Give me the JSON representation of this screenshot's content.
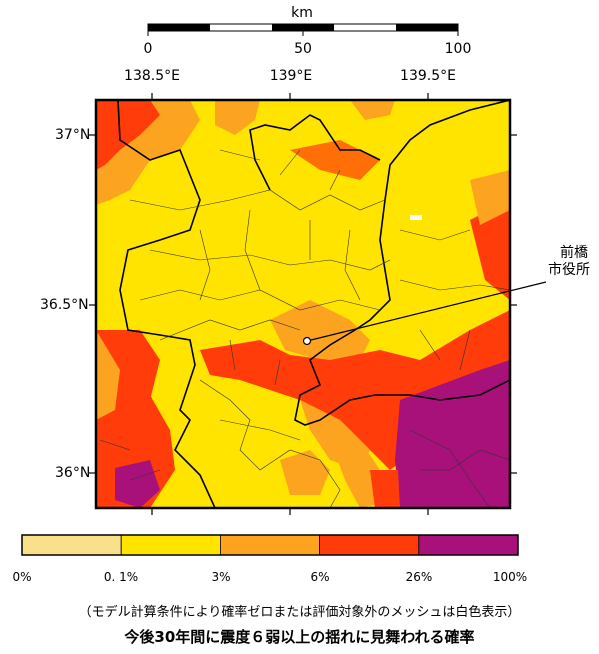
{
  "scale_bar": {
    "unit": "km",
    "ticks": [
      "0",
      "50",
      "100"
    ]
  },
  "lon_ticks": [
    "138.5°E",
    "139°E",
    "139.5°E"
  ],
  "lat_ticks": [
    "37°N",
    "36.5°N",
    "36°N"
  ],
  "marker": {
    "label_line1": "前橋",
    "label_line2": "市役所"
  },
  "legend": {
    "colors": [
      "#f9e08a",
      "#ffe400",
      "#fca420",
      "#ff3c0a",
      "#a8107a"
    ],
    "labels": [
      "0%",
      "0. 1%",
      "3%",
      "6%",
      "26%",
      "100%"
    ]
  },
  "note": "（モデル計算条件により確率ゼロまたは評価対象外のメッシュは白色表示）",
  "title": "今後30年間に震度６弱以上の揺れに見舞われる確率",
  "map_colors": {
    "background": "#ffe400",
    "orange": "#fca420",
    "red": "#ff3c0a",
    "purple": "#a8107a",
    "pale": "#f9e08a"
  }
}
